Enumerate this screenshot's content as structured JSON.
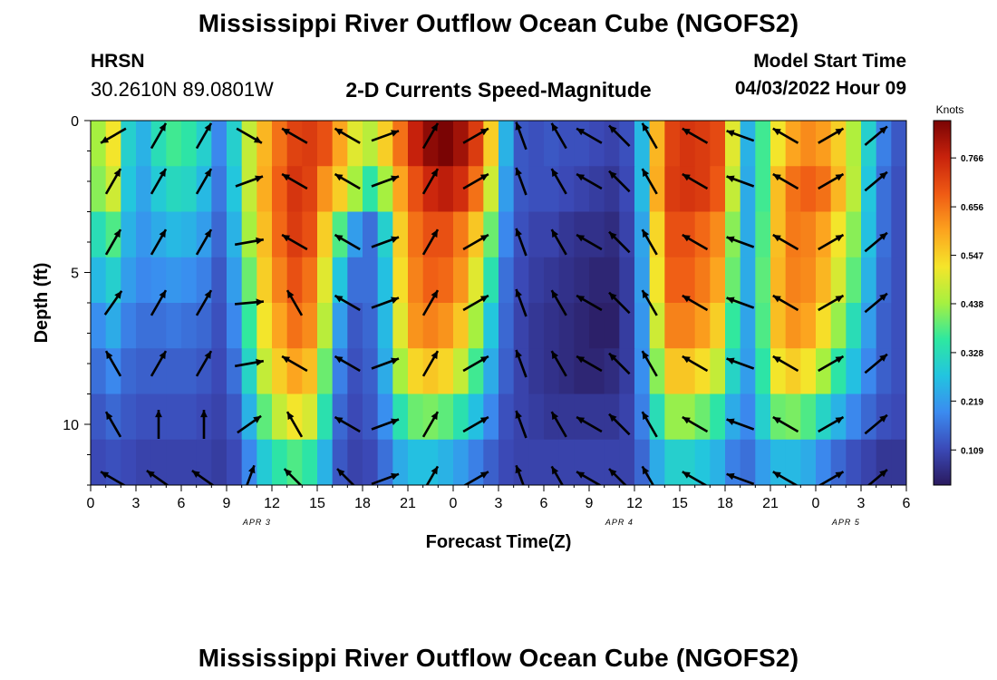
{
  "page": {
    "title": "Mississippi River Outflow Ocean Cube (NGOFS2)",
    "title_repeat": "Mississippi River Outflow Ocean Cube (NGOFS2)",
    "station": "HRSN",
    "coords": "30.2610N  89.0801W",
    "subtitle": "2-D Currents Speed-Magnitude",
    "model_start_label": "Model Start Time",
    "model_start_value": "04/03/2022 Hour 09"
  },
  "chart_data": {
    "type": "heatmap",
    "xlabel": "Forecast Time(Z)",
    "ylabel": "Depth (ft)",
    "x_ticks": [
      "0",
      "3",
      "6",
      "9",
      "12",
      "15",
      "18",
      "21",
      "0",
      "3",
      "6",
      "9",
      "12",
      "15",
      "18",
      "21",
      "0",
      "3",
      "6"
    ],
    "date_labels": [
      {
        "label": "APR 3",
        "x_hours": 11
      },
      {
        "label": "APR 4",
        "x_hours": 35
      },
      {
        "label": "APR 5",
        "x_hours": 50
      }
    ],
    "xlim_hours": [
      0,
      54
    ],
    "y_ticks": [
      0,
      5,
      10
    ],
    "ylim_ft": [
      0,
      12
    ],
    "colorbar": {
      "title": "Knots",
      "ticks": [
        0.109,
        0.219,
        0.328,
        0.438,
        0.547,
        0.656,
        0.766
      ],
      "range": [
        0.03,
        0.85
      ],
      "colors": [
        "#2a1a5e",
        "#3b4ab8",
        "#3b8bf0",
        "#22c4e0",
        "#2ee8a0",
        "#a6f040",
        "#f5e52a",
        "#fca21e",
        "#ef5a14",
        "#c8220c",
        "#7a0404"
      ]
    },
    "depth_layers_ft": [
      0.3,
      1.8,
      3.3,
      4.8,
      6.3,
      7.8,
      9.3,
      10.8
    ],
    "time_hours": [
      0,
      1,
      2,
      3,
      4,
      5,
      6,
      7,
      8,
      9,
      10,
      11,
      12,
      13,
      14,
      15,
      16,
      17,
      18,
      19,
      20,
      21,
      22,
      23,
      24,
      25,
      26,
      27,
      28,
      29,
      30,
      31,
      32,
      33,
      34,
      35,
      36,
      37,
      38,
      39,
      40,
      41,
      42,
      43,
      44,
      45,
      46,
      47,
      48,
      49,
      50,
      51,
      52,
      53
    ],
    "speed_knots": [
      [
        0.44,
        0.52,
        0.3,
        0.25,
        0.33,
        0.37,
        0.35,
        0.3,
        0.19,
        0.3,
        0.47,
        0.58,
        0.66,
        0.72,
        0.73,
        0.7,
        0.6,
        0.5,
        0.46,
        0.55,
        0.66,
        0.77,
        0.83,
        0.85,
        0.81,
        0.73,
        0.55,
        0.25,
        0.13,
        0.12,
        0.13,
        0.12,
        0.12,
        0.11,
        0.1,
        0.12,
        0.26,
        0.58,
        0.72,
        0.74,
        0.73,
        0.71,
        0.5,
        0.25,
        0.37,
        0.52,
        0.6,
        0.63,
        0.61,
        0.55,
        0.45,
        0.3,
        0.18,
        0.13
      ],
      [
        0.42,
        0.48,
        0.28,
        0.23,
        0.29,
        0.32,
        0.31,
        0.26,
        0.17,
        0.28,
        0.47,
        0.59,
        0.68,
        0.74,
        0.72,
        0.62,
        0.55,
        0.44,
        0.35,
        0.44,
        0.6,
        0.7,
        0.76,
        0.78,
        0.75,
        0.66,
        0.48,
        0.22,
        0.13,
        0.12,
        0.12,
        0.11,
        0.1,
        0.09,
        0.08,
        0.11,
        0.26,
        0.59,
        0.73,
        0.74,
        0.73,
        0.69,
        0.47,
        0.24,
        0.37,
        0.57,
        0.66,
        0.68,
        0.66,
        0.58,
        0.46,
        0.28,
        0.16,
        0.12
      ],
      [
        0.33,
        0.38,
        0.25,
        0.21,
        0.24,
        0.26,
        0.25,
        0.22,
        0.15,
        0.25,
        0.44,
        0.57,
        0.67,
        0.73,
        0.7,
        0.55,
        0.38,
        0.22,
        0.16,
        0.3,
        0.55,
        0.66,
        0.7,
        0.7,
        0.65,
        0.56,
        0.4,
        0.19,
        0.12,
        0.1,
        0.1,
        0.08,
        0.07,
        0.07,
        0.06,
        0.1,
        0.23,
        0.54,
        0.7,
        0.7,
        0.67,
        0.63,
        0.42,
        0.24,
        0.38,
        0.57,
        0.65,
        0.64,
        0.6,
        0.52,
        0.42,
        0.27,
        0.16,
        0.12
      ],
      [
        0.26,
        0.3,
        0.22,
        0.19,
        0.2,
        0.21,
        0.2,
        0.18,
        0.13,
        0.22,
        0.4,
        0.55,
        0.64,
        0.7,
        0.66,
        0.5,
        0.28,
        0.16,
        0.16,
        0.27,
        0.53,
        0.64,
        0.68,
        0.67,
        0.62,
        0.5,
        0.34,
        0.16,
        0.11,
        0.09,
        0.08,
        0.07,
        0.06,
        0.05,
        0.05,
        0.09,
        0.22,
        0.52,
        0.68,
        0.68,
        0.65,
        0.6,
        0.4,
        0.24,
        0.39,
        0.58,
        0.64,
        0.63,
        0.58,
        0.49,
        0.39,
        0.25,
        0.15,
        0.12
      ],
      [
        0.2,
        0.24,
        0.18,
        0.16,
        0.16,
        0.17,
        0.16,
        0.15,
        0.12,
        0.19,
        0.36,
        0.52,
        0.6,
        0.66,
        0.63,
        0.46,
        0.22,
        0.13,
        0.15,
        0.26,
        0.5,
        0.62,
        0.64,
        0.62,
        0.56,
        0.44,
        0.28,
        0.15,
        0.1,
        0.08,
        0.07,
        0.06,
        0.05,
        0.04,
        0.04,
        0.09,
        0.21,
        0.48,
        0.64,
        0.64,
        0.61,
        0.55,
        0.36,
        0.23,
        0.38,
        0.57,
        0.62,
        0.6,
        0.53,
        0.43,
        0.33,
        0.22,
        0.14,
        0.12
      ],
      [
        0.16,
        0.19,
        0.15,
        0.14,
        0.14,
        0.14,
        0.14,
        0.13,
        0.11,
        0.16,
        0.31,
        0.47,
        0.55,
        0.6,
        0.57,
        0.4,
        0.18,
        0.12,
        0.14,
        0.24,
        0.44,
        0.54,
        0.56,
        0.54,
        0.47,
        0.37,
        0.24,
        0.14,
        0.1,
        0.08,
        0.07,
        0.06,
        0.05,
        0.05,
        0.06,
        0.09,
        0.2,
        0.42,
        0.56,
        0.56,
        0.53,
        0.47,
        0.31,
        0.22,
        0.35,
        0.52,
        0.55,
        0.52,
        0.44,
        0.35,
        0.27,
        0.19,
        0.14,
        0.12
      ],
      [
        0.13,
        0.15,
        0.13,
        0.12,
        0.12,
        0.12,
        0.12,
        0.11,
        0.1,
        0.13,
        0.25,
        0.39,
        0.47,
        0.52,
        0.49,
        0.34,
        0.15,
        0.11,
        0.13,
        0.2,
        0.34,
        0.4,
        0.41,
        0.39,
        0.34,
        0.27,
        0.19,
        0.12,
        0.1,
        0.09,
        0.08,
        0.08,
        0.08,
        0.08,
        0.08,
        0.1,
        0.18,
        0.33,
        0.43,
        0.43,
        0.4,
        0.35,
        0.24,
        0.19,
        0.3,
        0.4,
        0.41,
        0.38,
        0.31,
        0.25,
        0.19,
        0.15,
        0.12,
        0.11
      ],
      [
        0.11,
        0.12,
        0.11,
        0.1,
        0.1,
        0.1,
        0.1,
        0.1,
        0.09,
        0.11,
        0.19,
        0.29,
        0.35,
        0.38,
        0.35,
        0.25,
        0.13,
        0.1,
        0.11,
        0.16,
        0.24,
        0.27,
        0.27,
        0.25,
        0.22,
        0.18,
        0.14,
        0.11,
        0.1,
        0.1,
        0.1,
        0.1,
        0.1,
        0.1,
        0.1,
        0.1,
        0.15,
        0.24,
        0.3,
        0.3,
        0.28,
        0.25,
        0.18,
        0.16,
        0.22,
        0.26,
        0.26,
        0.24,
        0.19,
        0.15,
        0.12,
        0.1,
        0.08,
        0.08
      ]
    ],
    "vector_times_hours": [
      1.5,
      4.5,
      7.5,
      10.5,
      13.5,
      17.0,
      19.5,
      22.5,
      25.5,
      28.5,
      31.0,
      33.0,
      35.0,
      37.0,
      40.0,
      43.0,
      46.0,
      49.0,
      52.0
    ],
    "vector_depths_ft": [
      0.5,
      2.0,
      4.0,
      6.0,
      8.0,
      10.0,
      11.8
    ],
    "vectors_deg": [
      [
        150,
        -60,
        -60,
        -55,
        -120,
        -120,
        -150
      ],
      [
        -60,
        -60,
        -60,
        -60,
        -60,
        -90,
        -145
      ],
      [
        -60,
        -60,
        -60,
        -60,
        -60,
        -90,
        -145
      ],
      [
        30,
        -20,
        -10,
        -5,
        -10,
        -35,
        -70
      ],
      [
        -150,
        -150,
        -150,
        -120,
        -150,
        -120,
        -135
      ],
      [
        -150,
        -150,
        -150,
        -150,
        -150,
        -150,
        -135
      ],
      [
        -20,
        -20,
        -20,
        -20,
        -20,
        -20,
        -20
      ],
      [
        -60,
        -60,
        -60,
        -60,
        -60,
        -60,
        -60
      ],
      [
        -30,
        -30,
        -30,
        -30,
        -30,
        -30,
        -30
      ],
      [
        -110,
        -110,
        -110,
        -110,
        -110,
        -110,
        -110
      ],
      [
        -120,
        -120,
        -120,
        -120,
        -120,
        -120,
        -120
      ],
      [
        -150,
        -150,
        -150,
        -150,
        -150,
        -150,
        -150
      ],
      [
        -135,
        -135,
        -135,
        -135,
        -135,
        -135,
        -135
      ],
      [
        -120,
        -120,
        -120,
        -120,
        -120,
        -120,
        -120
      ],
      [
        -150,
        -150,
        -150,
        -150,
        -150,
        -150,
        -150
      ],
      [
        -160,
        -160,
        -160,
        -160,
        -160,
        -160,
        -160
      ],
      [
        -150,
        -150,
        -150,
        -150,
        -150,
        -150,
        -150
      ],
      [
        -30,
        -30,
        -30,
        -30,
        -30,
        -30,
        -30
      ],
      [
        -40,
        -40,
        -40,
        -40,
        -40,
        -40,
        -40
      ]
    ]
  }
}
